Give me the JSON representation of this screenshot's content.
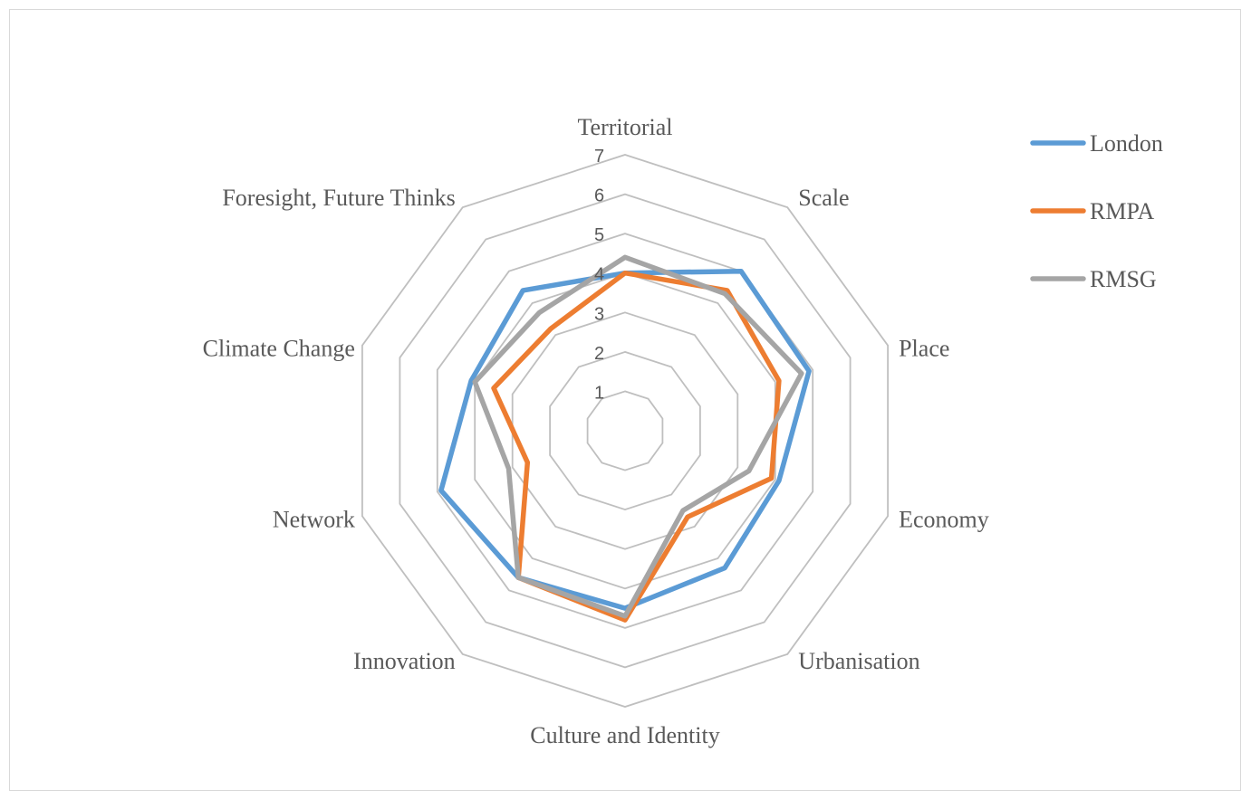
{
  "chart_data": {
    "type": "radar",
    "categories": [
      "Territorial",
      "Scale",
      "Place",
      "Economy",
      "Urbanisation",
      "Culture and Identity",
      "Innovation",
      "Network",
      "Climate Change",
      "Foresight, Future Thinks"
    ],
    "series": [
      {
        "name": "London",
        "color": "#5b9bd5",
        "values": [
          4.0,
          5.0,
          4.9,
          4.1,
          4.3,
          4.5,
          4.6,
          4.9,
          4.1,
          4.4
        ]
      },
      {
        "name": "RMPA",
        "color": "#ed7d31",
        "values": [
          4.0,
          4.4,
          4.1,
          3.9,
          2.7,
          4.8,
          4.6,
          2.6,
          3.5,
          3.2
        ]
      },
      {
        "name": "RMSG",
        "color": "#a5a5a5",
        "values": [
          4.4,
          4.3,
          4.7,
          3.3,
          2.5,
          4.7,
          4.6,
          3.1,
          4.0,
          3.7
        ]
      }
    ],
    "r_axis": {
      "min": 0,
      "max": 7,
      "ticks": [
        1,
        2,
        3,
        4,
        5,
        6,
        7
      ]
    },
    "legend_position": "top-right",
    "grid": true
  }
}
